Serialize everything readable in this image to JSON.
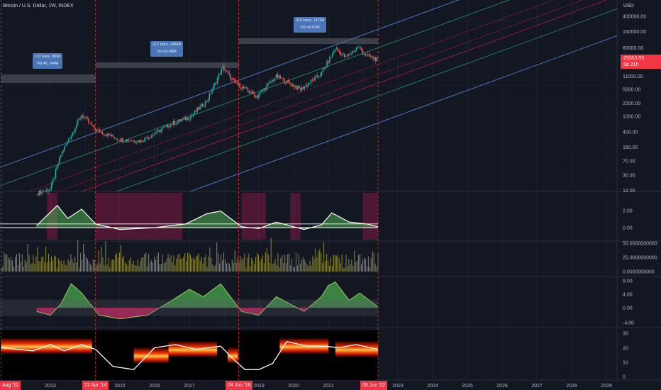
{
  "header": {
    "title": "Bitcoin / U.S. Dollar, 1W, INDEX",
    "currency": "USD"
  },
  "last_price": {
    "value": "29353.59",
    "countdown": "5d 21h"
  },
  "range_boxes": [
    {
      "bars": "137 bars, 959d",
      "vol": "Vol 46.744M"
    },
    {
      "bars": "212 bars, 1484d",
      "vol": "Vol 43.98M"
    },
    {
      "bars": "210 bars, 1470d",
      "vol": "Vol 43.61M"
    }
  ],
  "time_tags": [
    "Aug '11",
    "21 Apr '14",
    "04 Jun '18",
    "06 Jun '22"
  ],
  "colors": {
    "background": "#131722",
    "candle_up": "#26a69a",
    "candle_down": "#ef5350",
    "channel_blue": "#5b9cf6",
    "channel_green": "#2e9e6a",
    "channel_red": "#c2185b",
    "osc_green": "#4caf50",
    "osc_red": "#e91e63",
    "volume": "#8d8a3b",
    "heat": "#ff6d00",
    "tag_red": "#f23645"
  },
  "chart_data": [
    {
      "type": "line",
      "title": "Bitcoin / U.S. Dollar, 1W, INDEX",
      "scale": "log",
      "ylabel": "USD",
      "x": [
        2012.6,
        2013.0,
        2013.3,
        2013.9,
        2014.3,
        2015.0,
        2015.6,
        2016.5,
        2017.0,
        2017.5,
        2017.96,
        2018.3,
        2018.95,
        2019.5,
        2020.2,
        2020.8,
        2021.2,
        2021.5,
        2021.85,
        2022.1,
        2022.43
      ],
      "y": [
        10,
        13,
        100,
        1100,
        450,
        250,
        230,
        650,
        950,
        2500,
        19000,
        7500,
        3300,
        11000,
        5000,
        13000,
        58000,
        34000,
        64000,
        38000,
        29353
      ],
      "y_ticks": [
        "400000.00",
        "160000.00",
        "60000.00",
        "29353.59",
        "11000.00",
        "5000.00",
        "2200.00",
        "1000.00",
        "400.00",
        "160.00",
        "70.00",
        "30.00",
        "12.00"
      ],
      "x_ticks": [
        "Aug '11",
        "2013",
        "21 Apr '14",
        "2015",
        "2016",
        "2017",
        "04 Jun '18",
        "2019",
        "2020",
        "2021",
        "06 Jun '22",
        "2023",
        "2024",
        "2025",
        "2026",
        "2027",
        "2028",
        "2029"
      ]
    },
    {
      "type": "area",
      "ylim": [
        -0.8,
        4.0
      ],
      "y_ticks": [
        "2.00",
        "0.00"
      ],
      "series": [
        {
          "x": [
            2012.6,
            2013.2,
            2013.5,
            2013.9,
            2014.3,
            2015.0,
            2016.0,
            2016.9,
            2017.5,
            2017.9,
            2018.5,
            2019.0,
            2019.5,
            2020.3,
            2020.8,
            2021.1,
            2021.6,
            2022.1,
            2022.43
          ],
          "y": [
            0.2,
            2.4,
            1.0,
            2.0,
            0.4,
            -0.2,
            0.0,
            0.4,
            1.5,
            1.8,
            0.1,
            -0.1,
            0.6,
            -0.2,
            0.3,
            1.6,
            0.6,
            0.4,
            0.1
          ]
        }
      ]
    },
    {
      "type": "bar",
      "ylim": [
        0,
        50
      ],
      "y_ticks": [
        "50.0000000000",
        "25.0000000000",
        "0.0000000000"
      ]
    },
    {
      "type": "area",
      "ylim": [
        -4.8,
        8
      ],
      "y_ticks": [
        "8.00",
        "4.00",
        "0.00",
        "-4.00"
      ],
      "series": [
        {
          "x": [
            2012.6,
            2013.0,
            2013.3,
            2013.6,
            2013.9,
            2014.4,
            2015.0,
            2015.8,
            2016.5,
            2017.0,
            2017.4,
            2017.9,
            2018.5,
            2019.0,
            2019.5,
            2020.3,
            2020.8,
            2021.0,
            2021.2,
            2021.6,
            2021.9,
            2022.43
          ],
          "y": [
            -1,
            -2,
            1,
            6.5,
            4.0,
            -2,
            -3,
            -2,
            2,
            5,
            3,
            6.5,
            -1,
            -2,
            3,
            -1,
            3,
            6,
            7,
            2,
            4,
            0.2
          ]
        }
      ]
    },
    {
      "type": "heatmap",
      "ylim": [
        0,
        30
      ],
      "y_ticks": [
        "30",
        "20",
        "10",
        "0"
      ]
    }
  ]
}
